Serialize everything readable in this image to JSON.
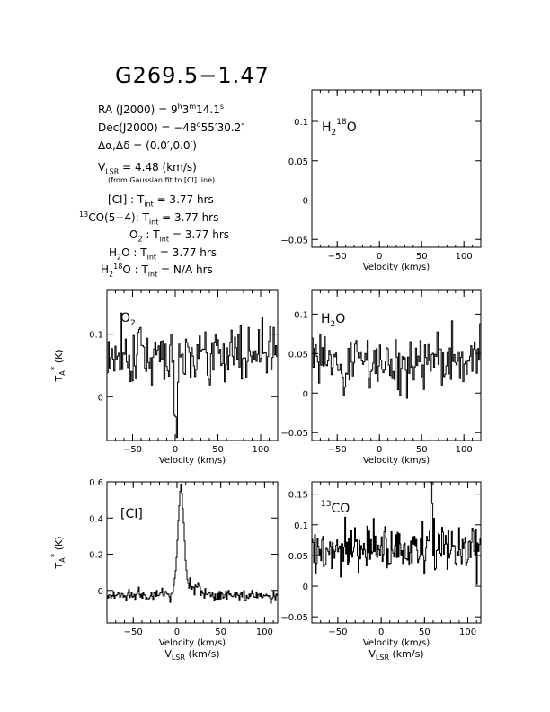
{
  "header": {
    "title": "G269.5−1.47",
    "ra": {
      "prefix": "RA (J2000) =  9",
      "h": "h",
      "mid1": "3",
      "m": "m",
      "mid2": "14.1",
      "s": "s"
    },
    "dec": {
      "prefix": "Dec(J2000) =  −48",
      "deg": "o",
      "rest": "55′30.2″"
    },
    "offset": "Δα,Δδ =  (0.0′,0.0′)",
    "vlsr": {
      "v": "V",
      "sub": "LSR",
      "rest": " = 4.48 (km/s)"
    },
    "fit_note": "(from Gaussian fit to [CI] line)",
    "integration": [
      {
        "label": "[CI] :",
        "t": "T",
        "sub": "int",
        "value": " = 3.77 hrs"
      },
      {
        "sup": "13",
        "label": "CO(5−4):",
        "t": "T",
        "sub": "int",
        "value": " = 3.77 hrs"
      },
      {
        "label": "O",
        "lsub": "2",
        "label2": " :",
        "t": "T",
        "sub": "int",
        "value": " = 3.77 hrs"
      },
      {
        "label": "H",
        "lsub": "2",
        "label2": "O :",
        "t": "T",
        "sub": "int",
        "value": " = 3.77 hrs"
      },
      {
        "label": "H",
        "lsub": "2",
        "lsup": "18",
        "label2": "O :",
        "t": "T",
        "sub": "int",
        "value": " = N/A hrs"
      }
    ]
  },
  "axis_text": {
    "velocity_label": "Velocity (km/s)",
    "vlsr_label": "V",
    "vlsr_sub": "LSR",
    "vlsr_unit": " (km/s)",
    "ylabel": "T",
    "ylabel_sub": "A",
    "ylabel_sup": "*",
    "ylabel_unit": " (K)"
  },
  "chart_data": [
    {
      "type": "line",
      "panel": "h2_18o",
      "label": "H₂¹⁸O",
      "label_parts": {
        "a": "H",
        "sub": "2",
        "sup": "18",
        "b": "O"
      },
      "xlim": [
        -80,
        120
      ],
      "ylim": [
        -0.06,
        0.14
      ],
      "xticks": [
        -50,
        0,
        50,
        100
      ],
      "yticks": [
        -0.05,
        0,
        0.05,
        0.1
      ],
      "ytick_labels": [
        "−0.05",
        "0",
        "0.05",
        "0.1"
      ],
      "x_label": "Velocity (km/s)",
      "show_vlsr": false,
      "series": {
        "seed": 0,
        "noise": 0,
        "n": 0,
        "lines": []
      }
    },
    {
      "type": "line",
      "panel": "o2",
      "label": "O₂",
      "label_parts": {
        "a": "O",
        "sub": "2",
        "sup": "",
        "b": ""
      },
      "xlim": [
        -80,
        120
      ],
      "ylim": [
        -0.07,
        0.17
      ],
      "xticks": [
        -50,
        0,
        50,
        100
      ],
      "yticks": [
        0,
        0.1
      ],
      "ytick_labels": [
        "0",
        "0.1"
      ],
      "x_label": "Velocity (km/s)",
      "show_vlsr": false,
      "show_ylabel": true,
      "series": {
        "seed": 7,
        "noise": 0.045,
        "baseline": 0.07,
        "n": 150,
        "lines": [
          {
            "center": 1,
            "width": 1.5,
            "amp": -0.1
          }
        ]
      }
    },
    {
      "type": "line",
      "panel": "h2o",
      "label": "H₂O",
      "label_parts": {
        "a": "H",
        "sub": "2",
        "sup": "",
        "b": "O"
      },
      "xlim": [
        -80,
        120
      ],
      "ylim": [
        -0.06,
        0.13
      ],
      "xticks": [
        -50,
        0,
        50,
        100
      ],
      "yticks": [
        -0.05,
        0,
        0.05,
        0.1
      ],
      "ytick_labels": [
        "−0.05",
        "0",
        "0.05",
        "0.1"
      ],
      "x_label": "Velocity (km/s)",
      "show_vlsr": false,
      "series": {
        "seed": 23,
        "noise": 0.04,
        "baseline": 0.04,
        "n": 150,
        "lines": []
      }
    },
    {
      "type": "line",
      "panel": "ci",
      "label": "[CI]",
      "label_parts": {
        "a": "[CI]",
        "sub": "",
        "sup": "",
        "b": ""
      },
      "xlim": [
        -80,
        115
      ],
      "ylim": [
        -0.18,
        0.6
      ],
      "xticks": [
        -50,
        0,
        50,
        100
      ],
      "yticks": [
        0,
        0.2,
        0.4,
        0.6
      ],
      "ytick_labels": [
        "0",
        "0.2",
        "0.4",
        "0.6"
      ],
      "x_label": "Velocity (km/s)",
      "show_vlsr": true,
      "show_ylabel": true,
      "series": {
        "seed": 41,
        "noise": 0.035,
        "baseline": -0.03,
        "n": 190,
        "lines": [
          {
            "center": 4.48,
            "width": 3.5,
            "amp": 0.6
          },
          {
            "center": 20,
            "width": 8,
            "amp": 0.05
          }
        ]
      }
    },
    {
      "type": "line",
      "panel": "13co",
      "label": "¹³CO",
      "label_parts": {
        "a": "",
        "sup_pre": "13",
        "sub": "",
        "sup": "",
        "b": "CO"
      },
      "xlim": [
        -80,
        115
      ],
      "ylim": [
        -0.06,
        0.17
      ],
      "xticks": [
        -50,
        0,
        50,
        100
      ],
      "yticks": [
        -0.05,
        0,
        0.05,
        0.1,
        0.15
      ],
      "ytick_labels": [
        "−0.05",
        "0",
        "0.05",
        "0.1",
        "0.15"
      ],
      "x_label": "Velocity (km/s)",
      "show_vlsr": true,
      "series": {
        "seed": 97,
        "noise": 0.04,
        "baseline": 0.06,
        "n": 190,
        "lines": [
          {
            "center": 58,
            "width": 1.5,
            "amp": 0.1
          }
        ]
      }
    }
  ]
}
